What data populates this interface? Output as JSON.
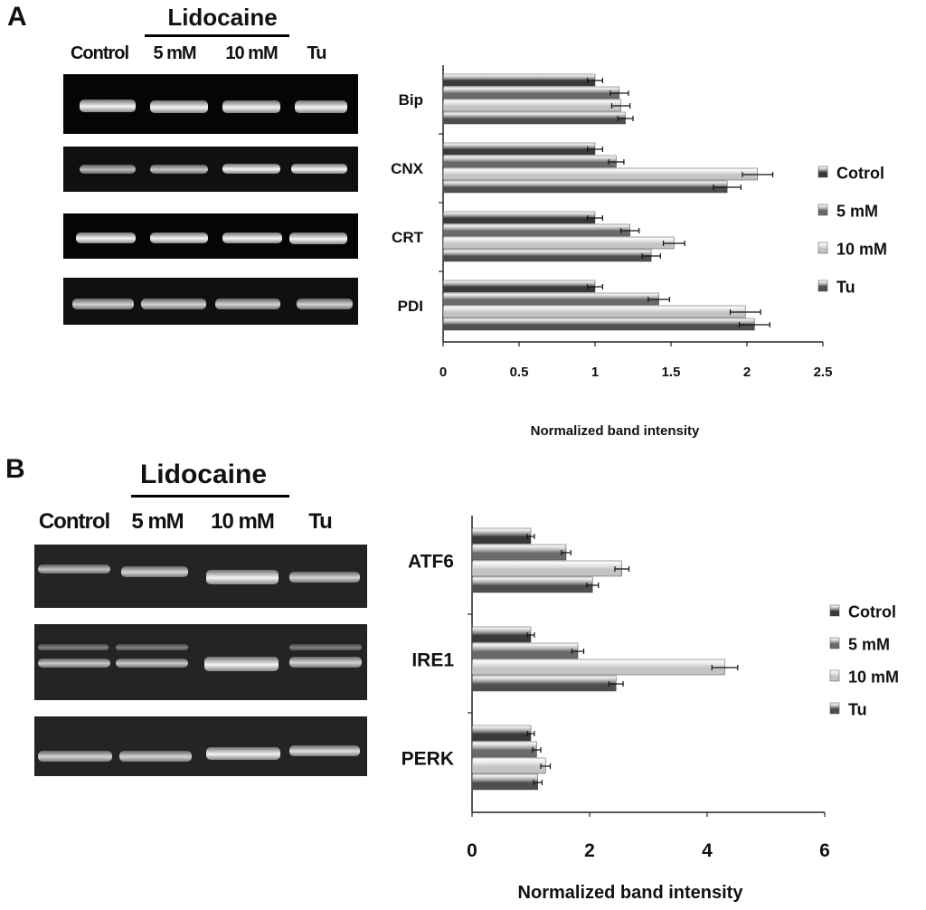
{
  "panel_a": {
    "letter": "A",
    "drug_label": "Lidocaine",
    "lanes": [
      "Control",
      "5 mM",
      "10 mM",
      "Tu"
    ]
  },
  "panel_b": {
    "letter": "B",
    "drug_label": "Lidocaine",
    "lanes": [
      "Control",
      "5 mM",
      "10 mM",
      "Tu"
    ]
  },
  "colors": {
    "cotrol": "#3a3a3a",
    "five_mm": "#6a6a6a",
    "ten_mm": "#c4c4c4",
    "tu": "#4e4e4e"
  },
  "chart_data": [
    {
      "type": "bar",
      "orientation": "horizontal",
      "categories": [
        "Bip",
        "CNX",
        "CRT",
        "PDI"
      ],
      "series": [
        {
          "name": "Cotrol",
          "values": [
            1.0,
            1.0,
            1.0,
            1.0
          ],
          "errors": [
            0.05,
            0.05,
            0.05,
            0.05
          ]
        },
        {
          "name": "5 mM",
          "values": [
            1.16,
            1.14,
            1.23,
            1.42
          ],
          "errors": [
            0.06,
            0.05,
            0.06,
            0.07
          ]
        },
        {
          "name": "10 mM",
          "values": [
            1.17,
            2.07,
            1.52,
            1.99
          ],
          "errors": [
            0.06,
            0.1,
            0.07,
            0.1
          ]
        },
        {
          "name": "Tu",
          "values": [
            1.2,
            1.87,
            1.37,
            2.05
          ],
          "errors": [
            0.05,
            0.09,
            0.06,
            0.1
          ]
        }
      ],
      "xlabel": "Normalized band intensity",
      "ylabel": "",
      "xlim": [
        0,
        2.5
      ],
      "xticks": [
        "0",
        "0.5",
        "1",
        "1.5",
        "2",
        "2.5"
      ],
      "grid": false,
      "legend_placement": "right"
    },
    {
      "type": "bar",
      "orientation": "horizontal",
      "categories": [
        "ATF6",
        "IRE1",
        "PERK"
      ],
      "series": [
        {
          "name": "Cotrol",
          "values": [
            1.0,
            1.0,
            1.0
          ],
          "errors": [
            0.06,
            0.06,
            0.06
          ]
        },
        {
          "name": "5 mM",
          "values": [
            1.6,
            1.8,
            1.1
          ],
          "errors": [
            0.08,
            0.1,
            0.07
          ]
        },
        {
          "name": "10 mM",
          "values": [
            2.55,
            4.3,
            1.25
          ],
          "errors": [
            0.12,
            0.22,
            0.08
          ]
        },
        {
          "name": "Tu",
          "values": [
            2.05,
            2.45,
            1.12
          ],
          "errors": [
            0.1,
            0.12,
            0.07
          ]
        }
      ],
      "xlabel": "Normalized band intensity",
      "ylabel": "",
      "xlim": [
        0,
        6
      ],
      "xticks": [
        "0",
        "2",
        "4",
        "6"
      ],
      "grid": false,
      "legend_placement": "right"
    }
  ]
}
